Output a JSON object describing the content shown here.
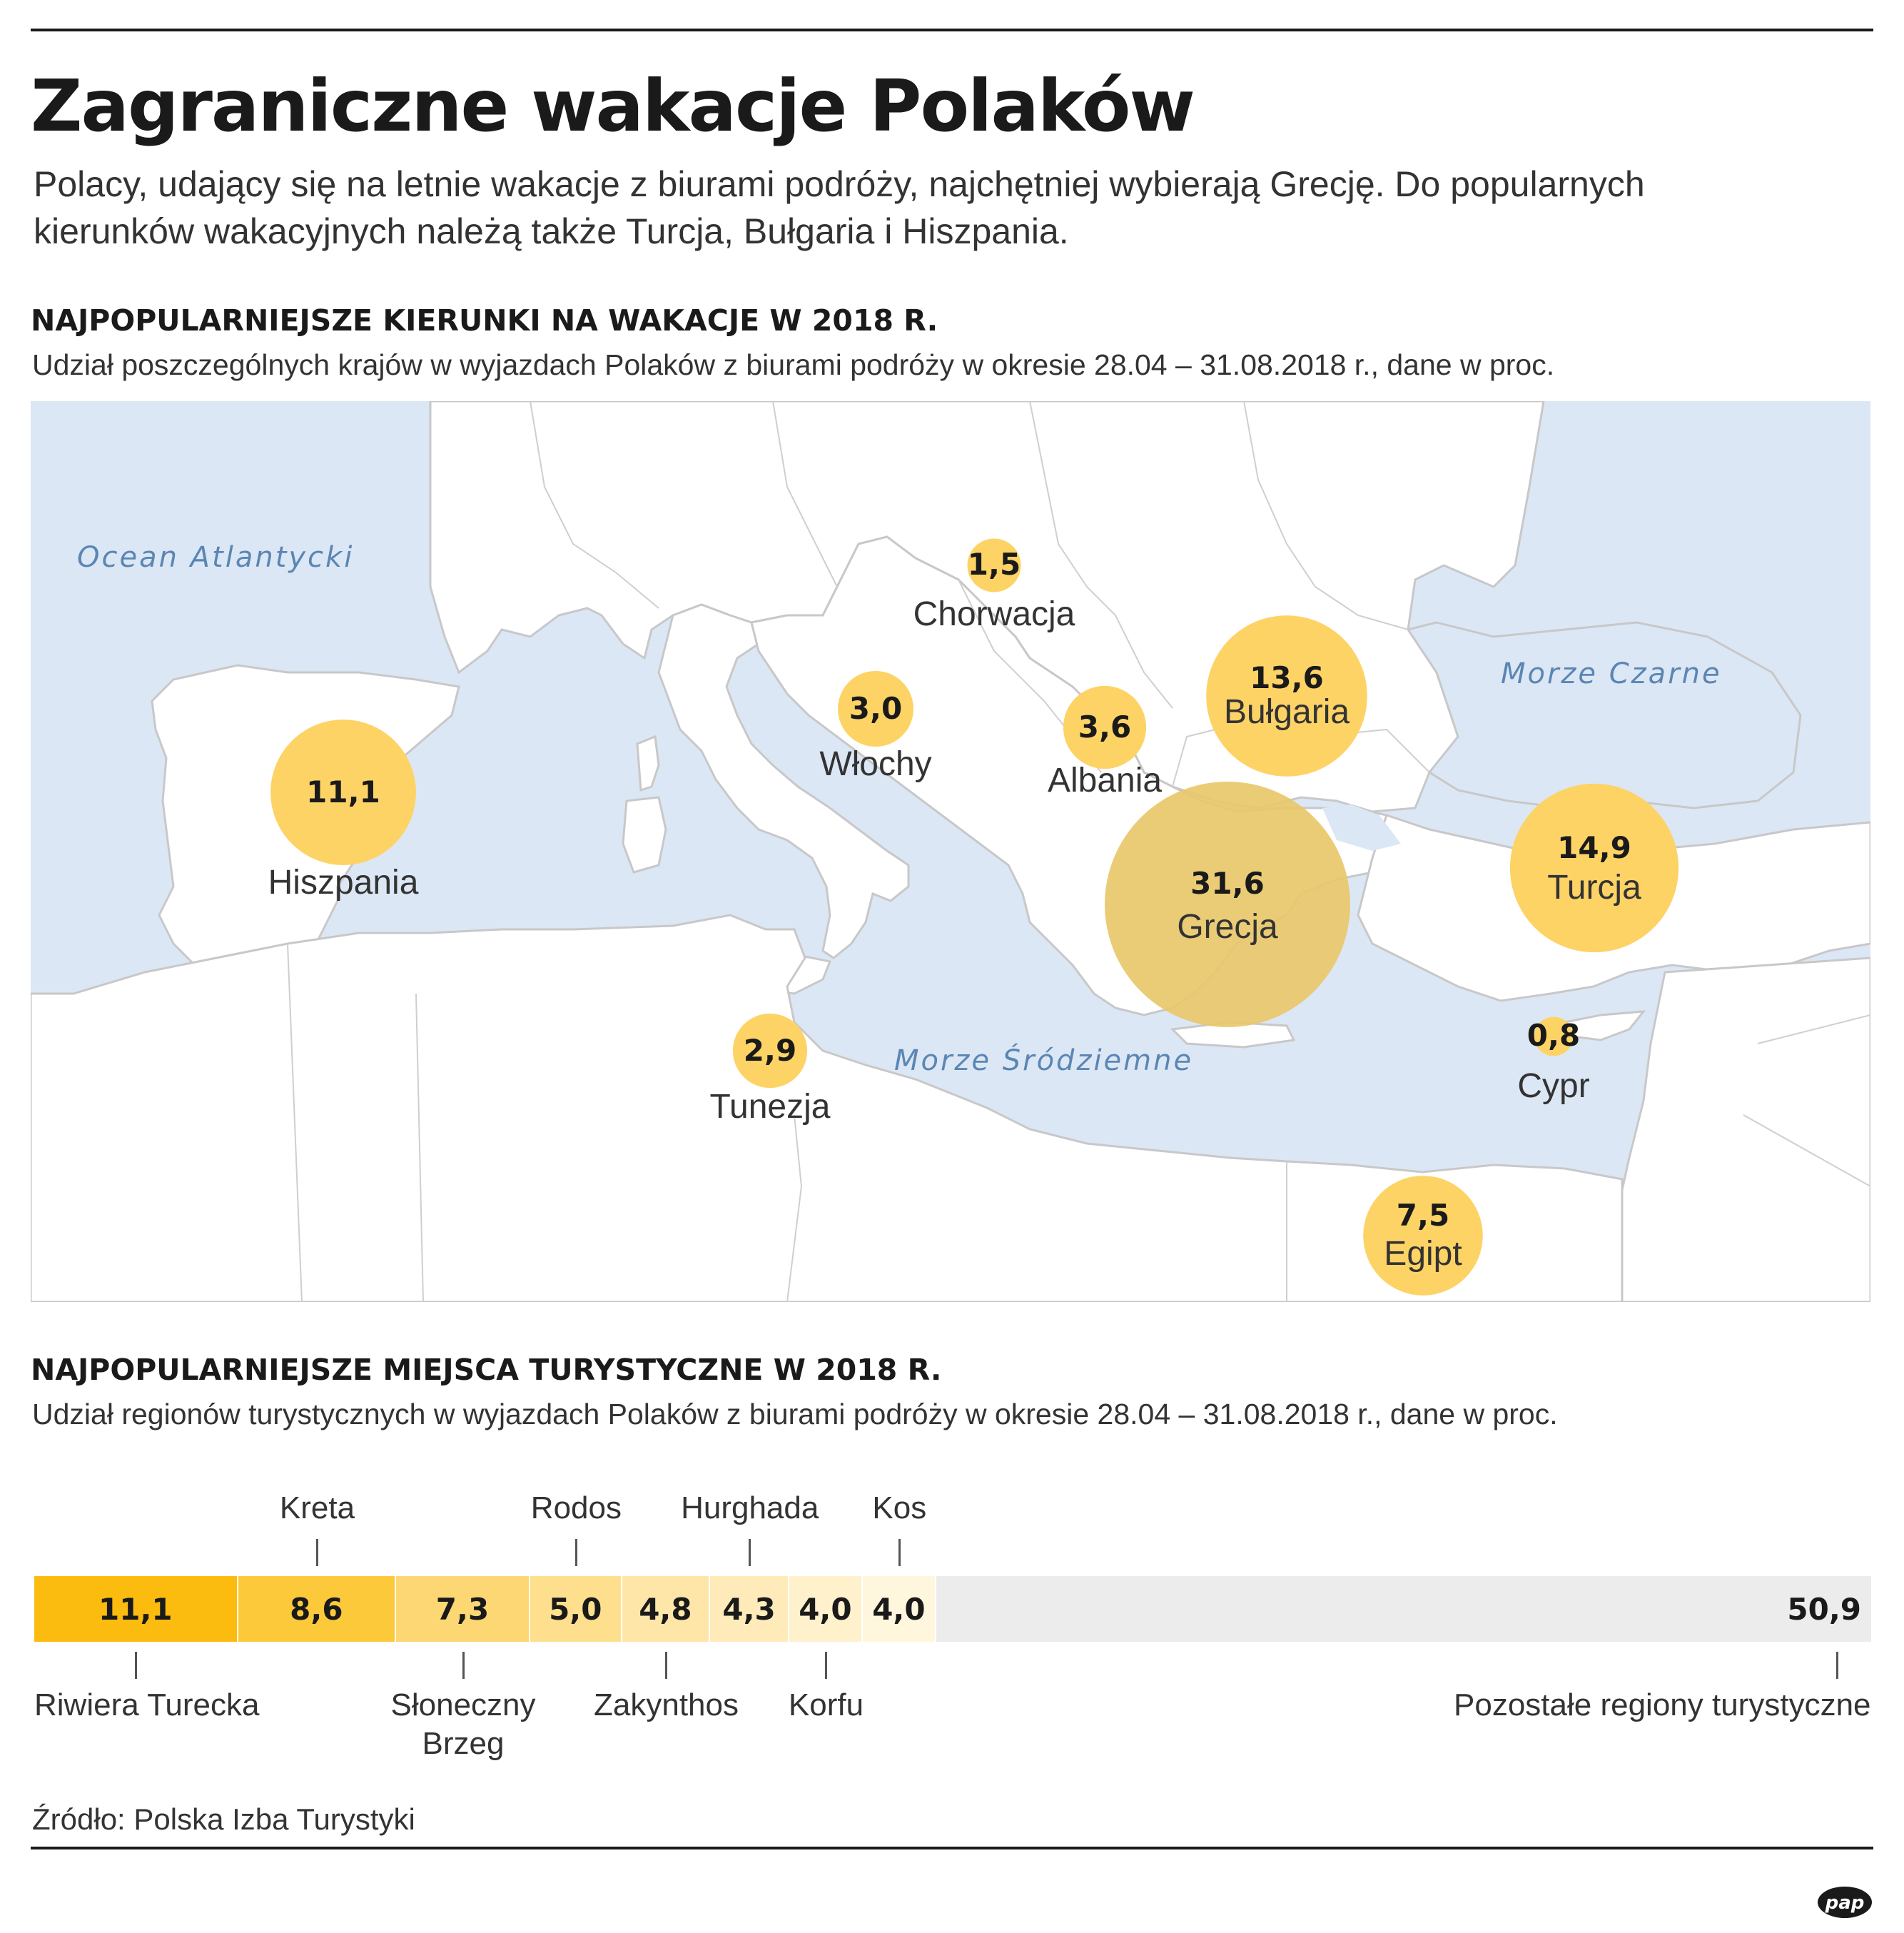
{
  "header": {
    "title": "Zagraniczne wakacje Polaków",
    "lede_line1": "Polacy, udający się na letnie wakacje z biurami podróży, najchętniej wybierają Grecję. Do popularnych",
    "lede_line2": "kierunków wakacyjnych należą także Turcja, Bułgaria i Hiszpania."
  },
  "map_section": {
    "title": "NAJPOPULARNIEJSZE KIERUNKI NA WAKACJE W 2018 R.",
    "subtitle": "Udział poszczególnych krajów w wyjazdach Polaków z biurami podróży w okresie 28.04 – 31.08.2018 r., dane w proc.",
    "seas": [
      "Ocean Atlantycki",
      "Morze Czarne",
      "Morze Śródziemne"
    ],
    "colors": {
      "water": "#dce7f5",
      "land": "#ffffff",
      "border": "#c8c8c8",
      "bubble": "#fdd366",
      "bubble_big": "#e9c86a",
      "sea_text": "#5b86b3"
    }
  },
  "chart_data": [
    {
      "type": "bubble-map",
      "unit": "proc.",
      "points": [
        {
          "country": "Grecja",
          "value": 31.6,
          "display": "31,6"
        },
        {
          "country": "Turcja",
          "value": 14.9,
          "display": "14,9"
        },
        {
          "country": "Bułgaria",
          "value": 13.6,
          "display": "13,6"
        },
        {
          "country": "Hiszpania",
          "value": 11.1,
          "display": "11,1"
        },
        {
          "country": "Egipt",
          "value": 7.5,
          "display": "7,5"
        },
        {
          "country": "Albania",
          "value": 3.6,
          "display": "3,6"
        },
        {
          "country": "Włochy",
          "value": 3.0,
          "display": "3,0"
        },
        {
          "country": "Tunezja",
          "value": 2.9,
          "display": "2,9"
        },
        {
          "country": "Chorwacja",
          "value": 1.5,
          "display": "1,5"
        },
        {
          "country": "Cypr",
          "value": 0.8,
          "display": "0,8"
        }
      ]
    },
    {
      "type": "stacked-bar",
      "unit": "proc.",
      "title": "NAJPOPULARNIEJSZE MIEJSCA TURYSTYCZNE W 2018 R.",
      "subtitle": "Udział regionów turystycznych w wyjazdach Polaków z biurami podróży w okresie 28.04 – 31.08.2018 r., dane w proc.",
      "segments": [
        {
          "region": "Riwiera Turecka",
          "value": 11.1,
          "display": "11,1",
          "color": "#fbbb0f"
        },
        {
          "region": "Kreta",
          "value": 8.6,
          "display": "8,6",
          "color": "#fcc93b"
        },
        {
          "region": "Słoneczny Brzeg",
          "value": 7.3,
          "display": "7,3",
          "color": "#fdd773"
        },
        {
          "region": "Rodos",
          "value": 5.0,
          "display": "5,0",
          "color": "#fedf8e"
        },
        {
          "region": "Zakynthos",
          "value": 4.8,
          "display": "4,8",
          "color": "#fee6a8"
        },
        {
          "region": "Hurghada",
          "value": 4.3,
          "display": "4,3",
          "color": "#feebb9"
        },
        {
          "region": "Korfu",
          "value": 4.0,
          "display": "4,0",
          "color": "#fff1cc"
        },
        {
          "region": "Kos",
          "value": 4.0,
          "display": "4,0",
          "color": "#fff6de"
        },
        {
          "region": "Pozostałe regiony turystyczne",
          "value": 50.9,
          "display": "50,9",
          "color": "#ececec"
        }
      ]
    }
  ],
  "regions_labels": {
    "slon_line1": "Słoneczny",
    "slon_line2": "Brzeg"
  },
  "footer": {
    "source": "Źródło: Polska Izba Turystyki",
    "logo": "pap"
  }
}
